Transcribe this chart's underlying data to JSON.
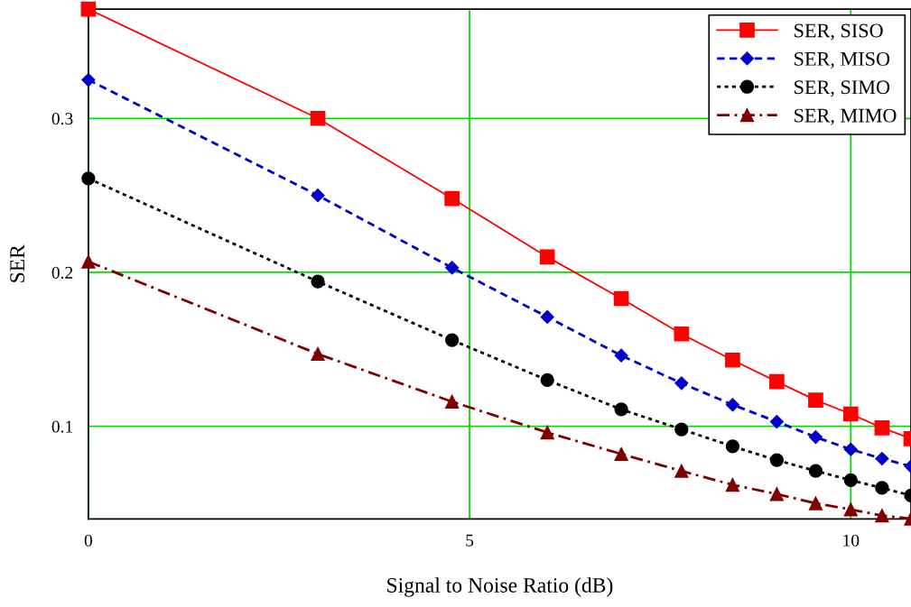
{
  "chart_data": {
    "type": "line",
    "xlabel": "Signal to Noise Ratio (dB)",
    "ylabel": "SER",
    "x": [
      0,
      3.01,
      4.77,
      6.02,
      6.99,
      7.78,
      8.45,
      9.03,
      9.54,
      10,
      10.41,
      10.79
    ],
    "xlim": [
      0,
      10.79
    ],
    "ylim": [
      0.0398,
      0.371
    ],
    "xticks": [
      0,
      5,
      10
    ],
    "yticks": [
      0.1,
      0.2,
      0.3
    ],
    "grid": true,
    "legend": "top right",
    "series": [
      {
        "name": "SER, SISO",
        "color": "#ff0000",
        "marker": "square",
        "line_style": "solid",
        "values": [
          0.371,
          0.3,
          0.248,
          0.21,
          0.183,
          0.16,
          0.143,
          0.129,
          0.117,
          0.108,
          0.099,
          0.092
        ]
      },
      {
        "name": "SER, MISO",
        "color": "#0000cc",
        "marker": "diamond",
        "line_style": "dashed",
        "values": [
          0.325,
          0.25,
          0.203,
          0.171,
          0.146,
          0.128,
          0.114,
          0.103,
          0.093,
          0.085,
          0.079,
          0.074
        ]
      },
      {
        "name": "SER, SIMO",
        "color": "#000000",
        "marker": "circle",
        "line_style": "dotted",
        "values": [
          0.261,
          0.194,
          0.156,
          0.13,
          0.111,
          0.098,
          0.087,
          0.078,
          0.071,
          0.065,
          0.06,
          0.055
        ]
      },
      {
        "name": "SER, MIMO",
        "color": "#800000",
        "marker": "triangle",
        "line_style": "dashdot",
        "values": [
          0.207,
          0.147,
          0.116,
          0.096,
          0.082,
          0.071,
          0.062,
          0.056,
          0.05,
          0.046,
          0.042,
          0.04
        ]
      }
    ]
  }
}
